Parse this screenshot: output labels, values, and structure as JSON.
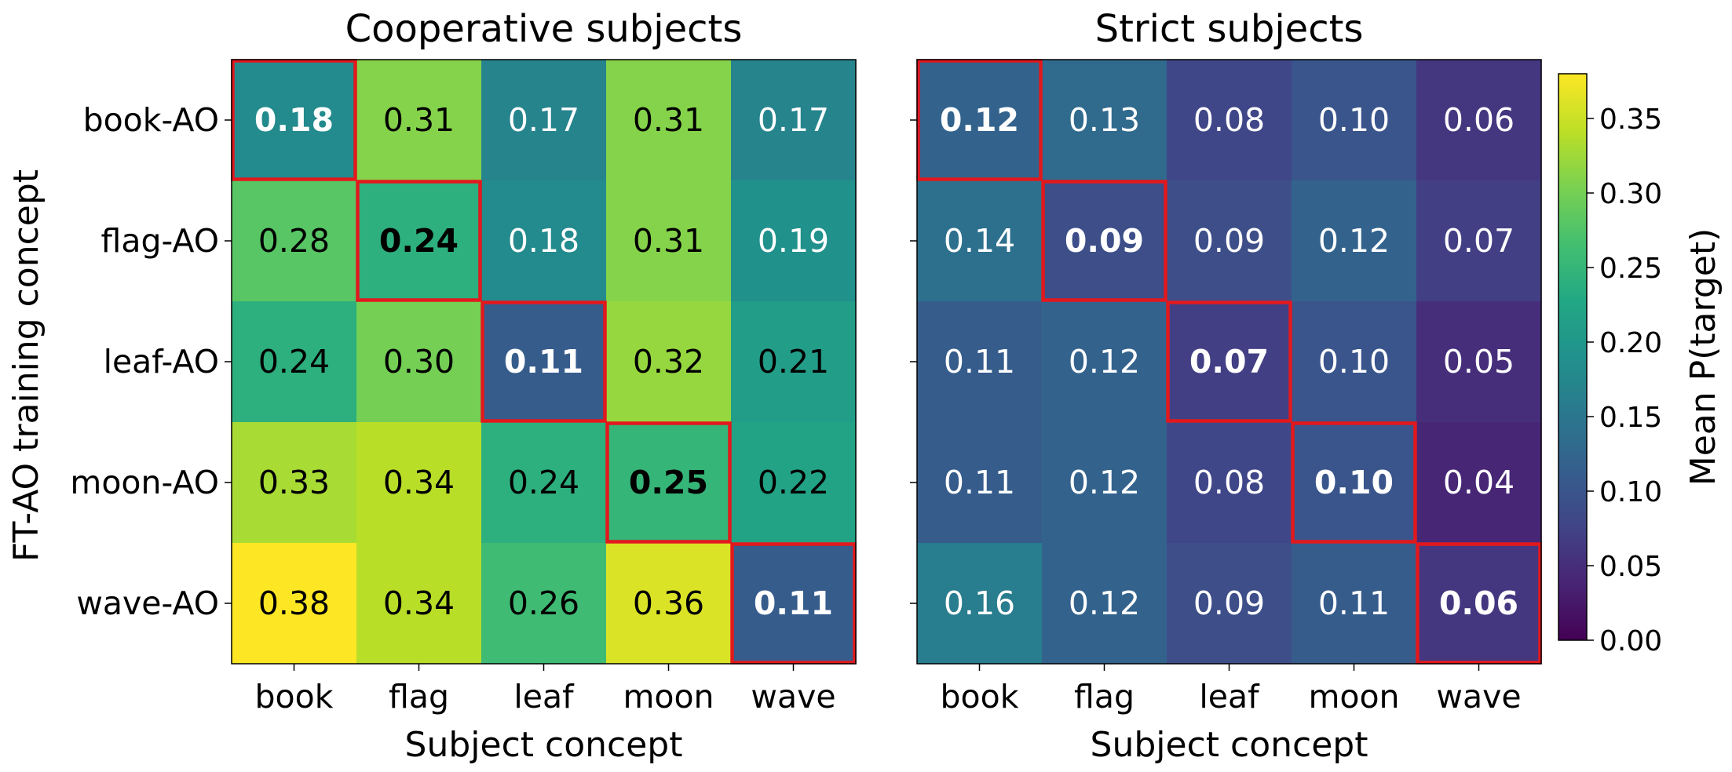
{
  "chart_data": {
    "type": "heatmap",
    "shared_ylabel": "FT-AO training concept",
    "row_labels": [
      "book-AO",
      "flag-AO",
      "leaf-AO",
      "moon-AO",
      "wave-AO"
    ],
    "col_labels": [
      "book",
      "flag",
      "leaf",
      "moon",
      "wave"
    ],
    "panels": [
      {
        "title": "Cooperative subjects",
        "xlabel": "Subject concept",
        "values": [
          [
            0.18,
            0.31,
            0.17,
            0.31,
            0.17
          ],
          [
            0.28,
            0.24,
            0.18,
            0.31,
            0.19
          ],
          [
            0.24,
            0.3,
            0.11,
            0.32,
            0.21
          ],
          [
            0.33,
            0.34,
            0.24,
            0.25,
            0.22
          ],
          [
            0.38,
            0.34,
            0.26,
            0.36,
            0.11
          ]
        ]
      },
      {
        "title": "Strict subjects",
        "xlabel": "Subject concept",
        "values": [
          [
            0.12,
            0.13,
            0.08,
            0.1,
            0.06
          ],
          [
            0.14,
            0.09,
            0.09,
            0.12,
            0.07
          ],
          [
            0.11,
            0.12,
            0.07,
            0.1,
            0.05
          ],
          [
            0.11,
            0.12,
            0.08,
            0.1,
            0.04
          ],
          [
            0.16,
            0.12,
            0.09,
            0.11,
            0.06
          ]
        ]
      }
    ],
    "diagonal_highlight": {
      "color": "#e3181d",
      "bold_values": true
    },
    "colorbar": {
      "label": "Mean P(target)",
      "colormap": "viridis",
      "range": [
        0,
        0.38
      ],
      "ticks": [
        "0.00",
        "0.05",
        "0.10",
        "0.15",
        "0.20",
        "0.25",
        "0.30",
        "0.35"
      ]
    }
  }
}
